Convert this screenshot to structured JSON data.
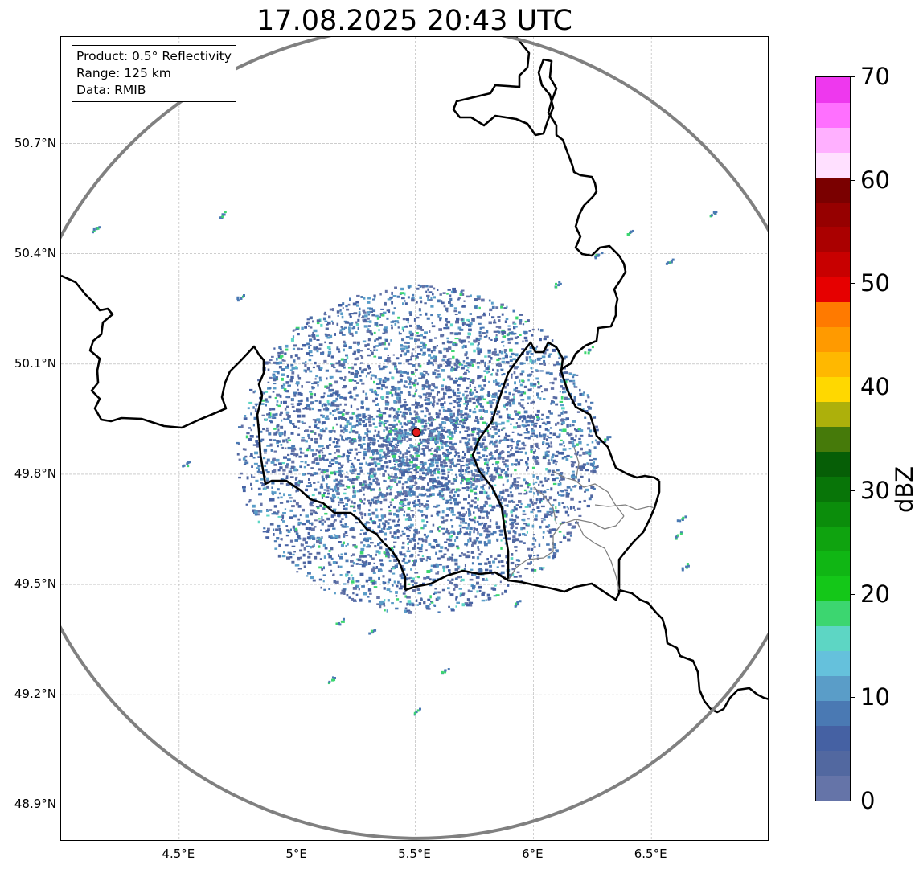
{
  "title": "17.08.2025 20:43 UTC",
  "info_box": {
    "product": "Product: 0.5° Reflectivity",
    "range": "Range: 125 km",
    "data": "Data: RMIB"
  },
  "map": {
    "lon_range": [
      4.0,
      7.0
    ],
    "lat_range": [
      48.8,
      50.99
    ],
    "lat_ticks": [
      "50.7°N",
      "50.4°N",
      "50.1°N",
      "49.8°N",
      "49.5°N",
      "49.2°N",
      "48.9°N"
    ],
    "lat_values": [
      50.7,
      50.4,
      50.1,
      49.8,
      49.5,
      49.2,
      48.9
    ],
    "lon_ticks": [
      "4.5°E",
      "5°E",
      "5.5°E",
      "6°E",
      "6.5°E"
    ],
    "lon_values": [
      4.5,
      5.0,
      5.5,
      6.0,
      6.5
    ],
    "radar_site": {
      "lon": 5.505,
      "lat": 49.914
    },
    "range_ring_color": "#808080",
    "marker_color": "#e11d1d"
  },
  "colorbar": {
    "label": "dBZ",
    "vmin": 0,
    "vmax": 70,
    "tick_labels": [
      "0",
      "10",
      "20",
      "30",
      "40",
      "50",
      "60",
      "70"
    ],
    "colors": [
      "#6574a8",
      "#5268a0",
      "#4561a3",
      "#4a79b3",
      "#5a9dc8",
      "#65c1dc",
      "#5dd6c4",
      "#3cd670",
      "#14c718",
      "#10b614",
      "#0fa30f",
      "#0b8d0b",
      "#087508",
      "#065e06",
      "#467a0a",
      "#adb00b",
      "#ffd800",
      "#ffb800",
      "#ff9a00",
      "#ff7a00",
      "#e60000",
      "#c80000",
      "#aa0000",
      "#960000",
      "#7a0000",
      "#ffe0ff",
      "#ffb0ff",
      "#ff70ff",
      "#ee38ee"
    ]
  }
}
